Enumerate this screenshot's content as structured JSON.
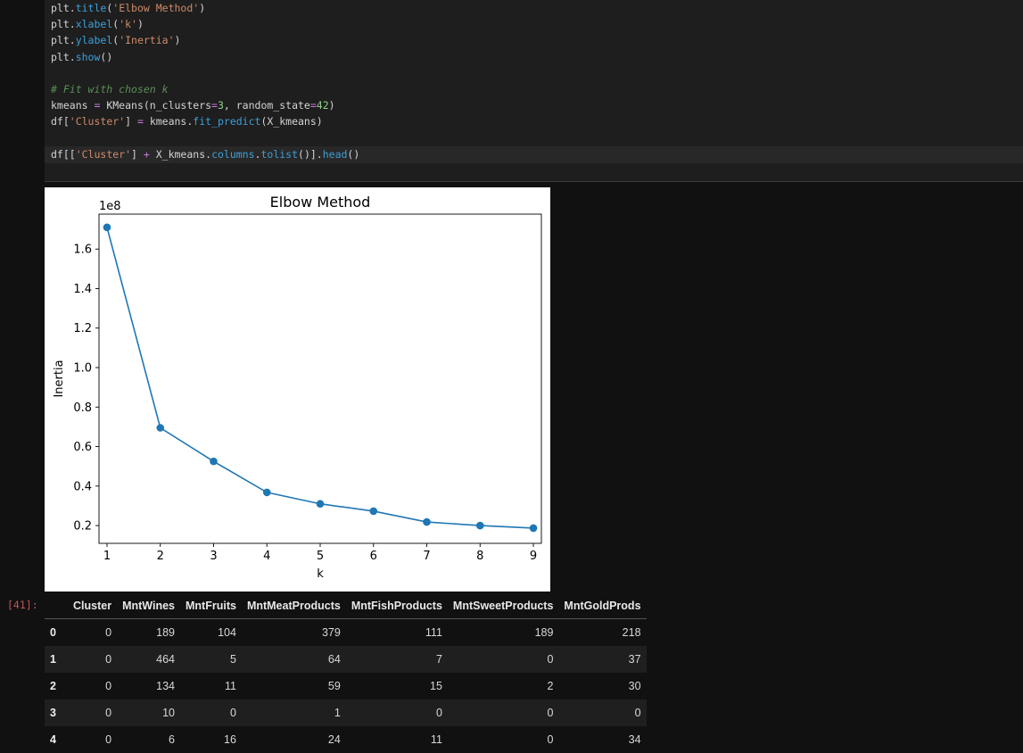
{
  "code": {
    "lines": [
      [
        [
          "t-var",
          "plt."
        ],
        [
          "t-fn",
          "title"
        ],
        [
          "t-var",
          "("
        ],
        [
          "t-str",
          "'Elbow Method'"
        ],
        [
          "t-var",
          ")"
        ]
      ],
      [
        [
          "t-var",
          "plt."
        ],
        [
          "t-fn",
          "xlabel"
        ],
        [
          "t-var",
          "("
        ],
        [
          "t-str",
          "'k'"
        ],
        [
          "t-var",
          ")"
        ]
      ],
      [
        [
          "t-var",
          "plt."
        ],
        [
          "t-fn",
          "ylabel"
        ],
        [
          "t-var",
          "("
        ],
        [
          "t-str",
          "'Inertia'"
        ],
        [
          "t-var",
          ")"
        ]
      ],
      [
        [
          "t-var",
          "plt."
        ],
        [
          "t-fn",
          "show"
        ],
        [
          "t-var",
          "()"
        ]
      ],
      [],
      [
        [
          "t-com",
          "# Fit with chosen k"
        ]
      ],
      [
        [
          "t-var",
          "kmeans "
        ],
        [
          "t-op",
          "="
        ],
        [
          "t-var",
          " KMeans(n_clusters"
        ],
        [
          "t-op",
          "="
        ],
        [
          "t-num",
          "3"
        ],
        [
          "t-var",
          ", random_state"
        ],
        [
          "t-op",
          "="
        ],
        [
          "t-num",
          "42"
        ],
        [
          "t-var",
          ")"
        ]
      ],
      [
        [
          "t-var",
          "df["
        ],
        [
          "t-str",
          "'Cluster'"
        ],
        [
          "t-var",
          "] "
        ],
        [
          "t-op",
          "="
        ],
        [
          "t-var",
          " kmeans."
        ],
        [
          "t-fn",
          "fit_predict"
        ],
        [
          "t-var",
          "(X_kmeans)"
        ]
      ],
      [],
      [
        [
          "t-var",
          "df[["
        ],
        [
          "t-str",
          "'Cluster'"
        ],
        [
          "t-var",
          "] "
        ],
        [
          "t-op",
          "+"
        ],
        [
          "t-var",
          " X_kmeans."
        ],
        [
          "t-fn",
          "columns"
        ],
        [
          "t-var",
          "."
        ],
        [
          "t-fn",
          "tolist"
        ],
        [
          "t-var",
          "()]."
        ],
        [
          "t-fn",
          "head"
        ],
        [
          "t-var",
          "()"
        ]
      ]
    ]
  },
  "output_prompt": "[41]:",
  "chart_data": {
    "type": "line",
    "title": "Elbow Method",
    "xlabel": "k",
    "ylabel": "Inertia",
    "offset_label": "1e8",
    "x": [
      1,
      2,
      3,
      4,
      5,
      6,
      7,
      8,
      9
    ],
    "y": [
      1.71,
      0.695,
      0.525,
      0.368,
      0.31,
      0.273,
      0.218,
      0.2,
      0.187
    ],
    "xlim": [
      0.85,
      9.15
    ],
    "ylim": [
      0.11,
      1.777
    ],
    "xticks": [
      "1",
      "2",
      "3",
      "4",
      "5",
      "6",
      "7",
      "8",
      "9"
    ],
    "yticks": [
      "0.2",
      "0.4",
      "0.6",
      "0.8",
      "1.0",
      "1.2",
      "1.4",
      "1.6"
    ],
    "color": "#1f77b4",
    "grid": false
  },
  "table": {
    "columns": [
      "Cluster",
      "MntWines",
      "MntFruits",
      "MntMeatProducts",
      "MntFishProducts",
      "MntSweetProducts",
      "MntGoldProds"
    ],
    "rows": [
      {
        "index": "0",
        "values": [
          "0",
          "189",
          "104",
          "379",
          "111",
          "189",
          "218"
        ]
      },
      {
        "index": "1",
        "values": [
          "0",
          "464",
          "5",
          "64",
          "7",
          "0",
          "37"
        ]
      },
      {
        "index": "2",
        "values": [
          "0",
          "134",
          "11",
          "59",
          "15",
          "2",
          "30"
        ]
      },
      {
        "index": "3",
        "values": [
          "0",
          "10",
          "0",
          "1",
          "0",
          "0",
          "0"
        ]
      },
      {
        "index": "4",
        "values": [
          "0",
          "6",
          "16",
          "24",
          "11",
          "0",
          "34"
        ]
      }
    ]
  }
}
